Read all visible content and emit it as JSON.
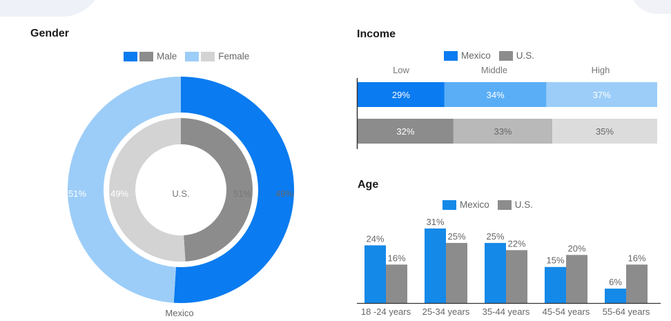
{
  "colors": {
    "mexico_dark": "#0a7bf0",
    "mexico_light": "#9ccdf8",
    "us_dark": "#8c8c8c",
    "us_light": "#d3d3d3",
    "income_mexico": [
      "#0a7bf0",
      "#5aaef6",
      "#9ccdf8"
    ],
    "income_us": [
      "#8c8c8c",
      "#b9b9b9",
      "#dcdcdc"
    ],
    "age_mexico": "#1489e8",
    "age_us": "#8c8c8c"
  },
  "gender": {
    "title": "Gender",
    "legend": {
      "male": "Male",
      "female": "Female"
    },
    "inner_label": "U.S.",
    "outer_label": "Mexico"
  },
  "income": {
    "title": "Income",
    "legend": {
      "mexico": "Mexico",
      "us": "U.S."
    },
    "categories": [
      "Low",
      "Middle",
      "High"
    ]
  },
  "age": {
    "title": "Age",
    "legend": {
      "mexico": "Mexico",
      "us": "U.S."
    }
  },
  "chart_data": [
    {
      "type": "pie",
      "title": "Gender",
      "categories": [
        "Male",
        "Female"
      ],
      "series": [
        {
          "name": "Mexico",
          "values": [
            51,
            49
          ],
          "labels": [
            "51%",
            "49%"
          ]
        },
        {
          "name": "U.S.",
          "values": [
            49,
            51
          ],
          "labels": [
            "49%",
            "51%"
          ]
        }
      ]
    },
    {
      "type": "bar",
      "title": "Income",
      "stacked": true,
      "categories": [
        "Low",
        "Middle",
        "High"
      ],
      "series": [
        {
          "name": "Mexico",
          "values": [
            29,
            34,
            37
          ],
          "labels": [
            "29%",
            "34%",
            "37%"
          ]
        },
        {
          "name": "U.S.",
          "values": [
            32,
            33,
            35
          ],
          "labels": [
            "32%",
            "33%",
            "35%"
          ]
        }
      ]
    },
    {
      "type": "bar",
      "title": "Age",
      "categories": [
        "18 -24 years",
        "25-34 years",
        "35-44 years",
        "45-54 years",
        "55-64 years"
      ],
      "series": [
        {
          "name": "Mexico",
          "values": [
            24,
            31,
            25,
            15,
            6
          ],
          "labels": [
            "24%",
            "31%",
            "25%",
            "15%",
            "6%"
          ]
        },
        {
          "name": "U.S.",
          "values": [
            16,
            25,
            22,
            20,
            16
          ],
          "labels": [
            "16%",
            "25%",
            "22%",
            "20%",
            "16%"
          ]
        }
      ],
      "ylim": [
        0,
        35
      ]
    }
  ]
}
